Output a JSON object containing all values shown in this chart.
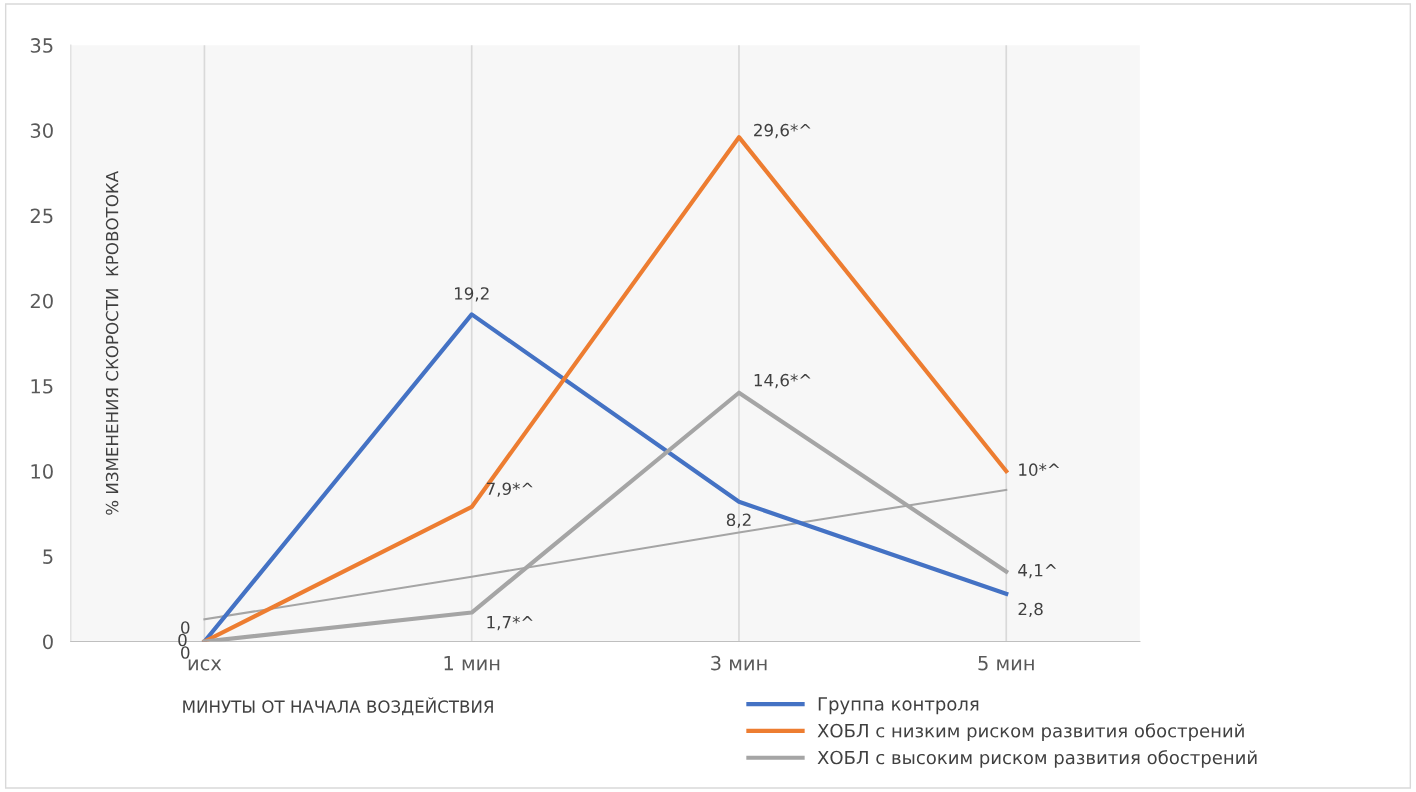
{
  "chart_data": {
    "type": "line",
    "ylabel": "% ИЗМЕНЕНИЯ СКОРОСТИ  КРОВОТОКА",
    "xlabel": "МИНУТЫ ОТ НАЧАЛА ВОЗДЕЙСТВИЯ",
    "categories": [
      "исх",
      "1 мин",
      "3 мин",
      "5 мин"
    ],
    "series": [
      {
        "name": "Группа контроля",
        "color": "#4472c4",
        "values": [
          0,
          19.2,
          8.2,
          2.8
        ],
        "value_labels": [
          "0",
          "19,2",
          "8,2",
          "2,8"
        ]
      },
      {
        "name": "ХОБЛ с низким риском развития обострений",
        "color": "#ed7d31",
        "values": [
          0,
          7.9,
          29.6,
          10
        ],
        "value_labels": [
          "0",
          "7,9*^",
          "29,6*^",
          "10*^"
        ]
      },
      {
        "name": "ХОБЛ с высоким риском развития обострений",
        "color": "#a5a5a5",
        "values": [
          0,
          1.7,
          14.6,
          4.1
        ],
        "value_labels": [
          "0",
          "1,7*^",
          "14,6*^",
          "4,1^"
        ]
      },
      {
        "type": "line",
        "color": "#a5a5a5",
        "values": [
          1.3,
          3.8,
          6.4,
          8.9
        ]
      }
    ],
    "ylim": [
      0,
      35
    ],
    "yticks": [
      0,
      5,
      10,
      15,
      20,
      25,
      30,
      35
    ],
    "grid": "x",
    "legend": "bottom right",
    "marker": "none",
    "line_style": "solid"
  }
}
